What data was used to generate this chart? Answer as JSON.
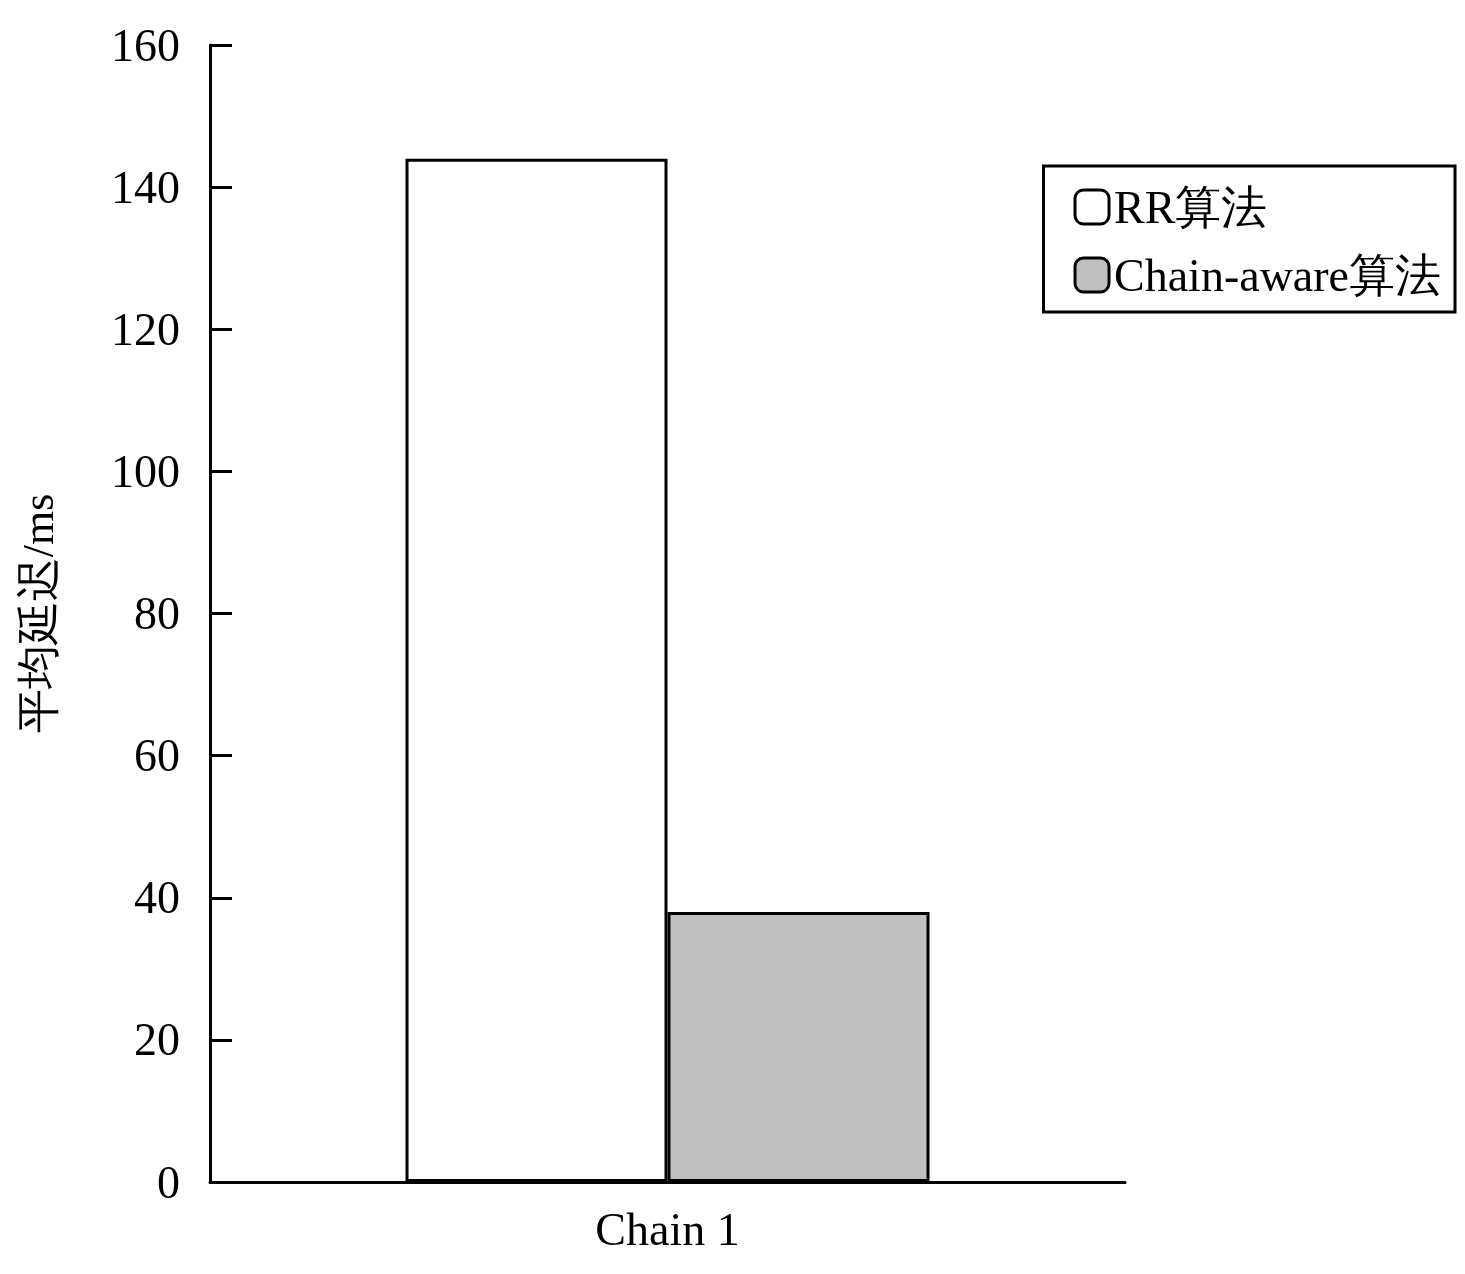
{
  "chart_data": {
    "type": "bar",
    "ylabel": "平均延迟/ms",
    "categories": [
      "Chain 1"
    ],
    "series": [
      {
        "name": "RR算法",
        "color": "#ffffff",
        "values": [
          144
        ]
      },
      {
        "name": "Chain-aware算法",
        "color": "#c0c0c0",
        "values": [
          38
        ]
      }
    ],
    "ylim": [
      0,
      160
    ],
    "yticks": [
      0,
      20,
      40,
      60,
      80,
      100,
      120,
      140,
      160
    ],
    "grid": false,
    "legend": "top right"
  }
}
